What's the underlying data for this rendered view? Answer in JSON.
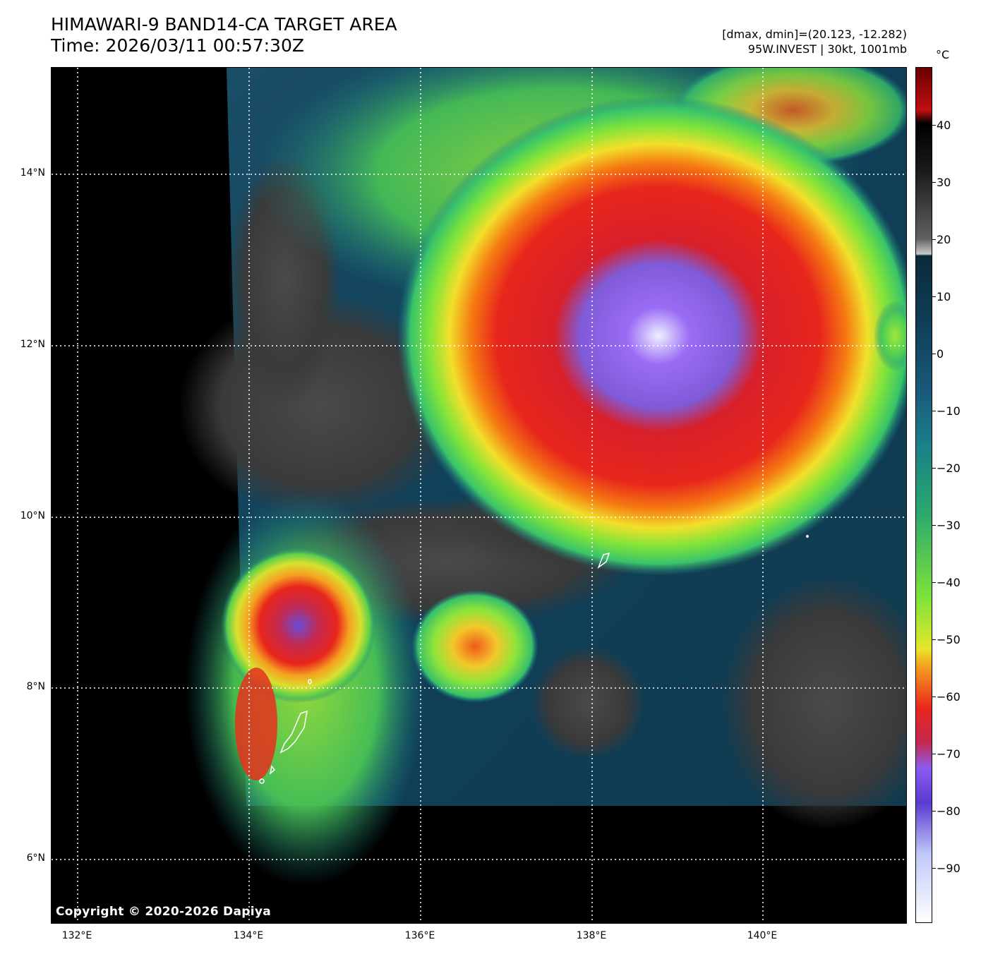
{
  "title": {
    "line1": "HIMAWARI-9 BAND14-CA TARGET AREA",
    "line2": "Time: 2026/03/11 00:57:30Z"
  },
  "subtitle": {
    "line1": "[dmax, dmin]=(20.123, -12.282)",
    "line2": "95W.INVEST | 30kt, 1001mb"
  },
  "colorbar": {
    "unit": "°C",
    "ticks": [
      "40",
      "30",
      "20",
      "10",
      "0",
      "−10",
      "−20",
      "−30",
      "−40",
      "−50",
      "−60",
      "−70",
      "−80",
      "−90"
    ],
    "range": [
      -100,
      50
    ]
  },
  "axes": {
    "lat_labels": [
      "14°N",
      "12°N",
      "10°N",
      "8°N",
      "6°N"
    ],
    "lon_labels": [
      "132°E",
      "134°E",
      "136°E",
      "138°E",
      "140°E"
    ]
  },
  "copyright": "Copyright © 2020-2026 Dapiya",
  "colors": {
    "background_ocean_warm": "#0d3a52",
    "cold_cloud_red": "#e0261c",
    "very_cold_violet": "#8a5cf0",
    "green": "#7de33a",
    "yellow": "#e6e62a"
  }
}
